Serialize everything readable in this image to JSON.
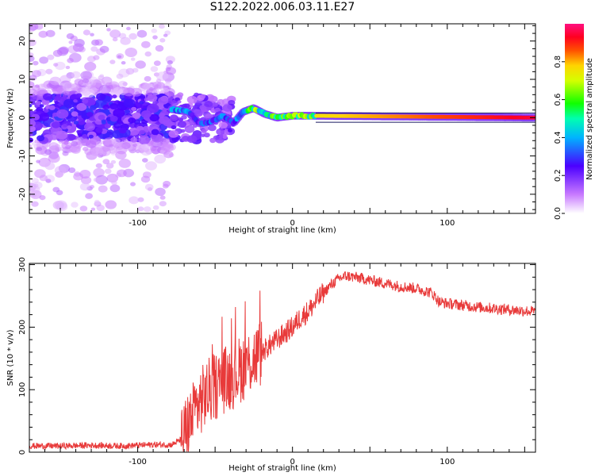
{
  "title": "S122.2022.006.03.11.E27",
  "chart_data": [
    {
      "type": "heatmap",
      "xlabel": "Height of straight line (km)",
      "ylabel": "Frequency (Hz)",
      "xlim": [
        -170,
        157
      ],
      "ylim": [
        -25,
        24.5
      ],
      "xticks": [
        -100,
        0,
        100
      ],
      "yticks": [
        -20,
        -10,
        0,
        10,
        20
      ],
      "colorbar": {
        "label": "Normalized spectral amplitude",
        "ticks": [
          "0.0",
          "0.2",
          "0.4",
          "0.6",
          "0.8"
        ],
        "range": [
          0,
          1
        ],
        "colormap": "white-violet-blue-cyan-green-yellow-red-magenta"
      },
      "ridge": [
        {
          "x": -75,
          "y": 2.0,
          "amp": 0.45
        },
        {
          "x": -67,
          "y": 1.5,
          "amp": 0.4
        },
        {
          "x": -60,
          "y": -1.5,
          "amp": 0.35
        },
        {
          "x": -52,
          "y": -1.0,
          "amp": 0.4
        },
        {
          "x": -45,
          "y": 0.5,
          "amp": 0.4
        },
        {
          "x": -38,
          "y": -1.5,
          "amp": 0.35
        },
        {
          "x": -32,
          "y": 1.5,
          "amp": 0.55
        },
        {
          "x": -25,
          "y": 2.5,
          "amp": 0.75
        },
        {
          "x": -18,
          "y": 1.0,
          "amp": 0.6
        },
        {
          "x": -10,
          "y": 0.0,
          "amp": 0.7
        },
        {
          "x": 0,
          "y": 0.5,
          "amp": 0.75
        },
        {
          "x": 10,
          "y": 0.5,
          "amp": 0.75
        },
        {
          "x": 157,
          "y": 0.0,
          "amp": 0.95
        }
      ]
    },
    {
      "type": "line",
      "xlabel": "Height of straight line (km)",
      "ylabel": "SNR (10 * v/v)",
      "xlim": [
        -170,
        157
      ],
      "ylim": [
        0,
        302
      ],
      "xticks": [
        -100,
        0,
        100
      ],
      "yticks": [
        0,
        100,
        200,
        300
      ],
      "series": [
        {
          "color": "#e83a3a",
          "x": [
            -170,
            -150,
            -130,
            -110,
            -90,
            -78,
            -72,
            -68,
            -65,
            -60,
            -55,
            -50,
            -45,
            -40,
            -35,
            -30,
            -25,
            -20,
            -15,
            -10,
            -5,
            0,
            5,
            10,
            15,
            20,
            25,
            30,
            35,
            40,
            45,
            50,
            60,
            70,
            80,
            90,
            95,
            100,
            110,
            120,
            130,
            140,
            150,
            157
          ],
          "y": [
            10,
            10,
            11,
            10,
            12,
            12,
            20,
            40,
            55,
            80,
            95,
            105,
            115,
            120,
            130,
            140,
            150,
            160,
            170,
            180,
            190,
            200,
            215,
            225,
            240,
            255,
            268,
            278,
            282,
            280,
            278,
            275,
            270,
            265,
            262,
            255,
            240,
            238,
            235,
            232,
            230,
            228,
            226,
            225
          ]
        }
      ]
    }
  ]
}
